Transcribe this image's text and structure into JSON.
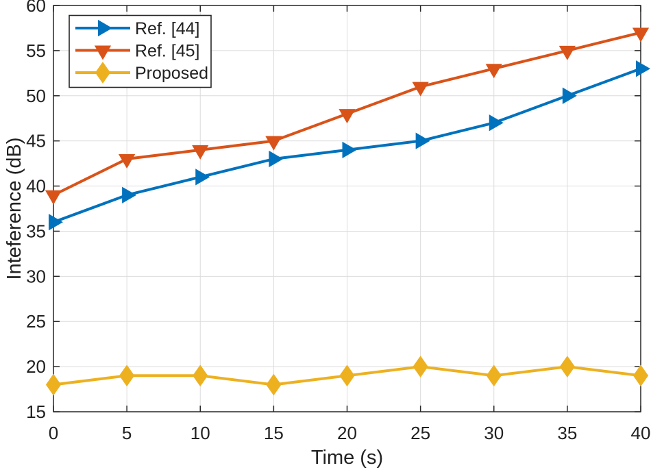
{
  "figure": {
    "background": "#ffffff",
    "axis_color": "#262626",
    "grid_color": "#dbdbdb",
    "text_color": "#212121"
  },
  "chart_data": {
    "type": "line",
    "title": "",
    "xlabel": "Time (s)",
    "ylabel": "Inteference (dB)",
    "xlim": [
      0,
      40
    ],
    "ylim": [
      15,
      60
    ],
    "xticks": [
      0,
      5,
      10,
      15,
      20,
      25,
      30,
      35,
      40
    ],
    "yticks": [
      15,
      20,
      25,
      30,
      35,
      40,
      45,
      50,
      55,
      60
    ],
    "grid": true,
    "legend_position": "top-left",
    "x": [
      0,
      5,
      10,
      15,
      20,
      25,
      30,
      35,
      40
    ],
    "series": [
      {
        "name": "Ref. [44]",
        "color": "#0072BD",
        "marker": "triangle-right",
        "values": [
          36,
          39,
          41,
          43,
          44,
          45,
          47,
          50,
          53
        ]
      },
      {
        "name": "Ref. [45]",
        "color": "#D95319",
        "marker": "triangle-down",
        "values": [
          39,
          43,
          44,
          45,
          48,
          51,
          53,
          55,
          57
        ]
      },
      {
        "name": "Proposed",
        "color": "#EDB120",
        "marker": "diamond",
        "values": [
          18,
          19,
          19,
          18,
          19,
          20,
          19,
          20,
          19
        ]
      }
    ]
  }
}
